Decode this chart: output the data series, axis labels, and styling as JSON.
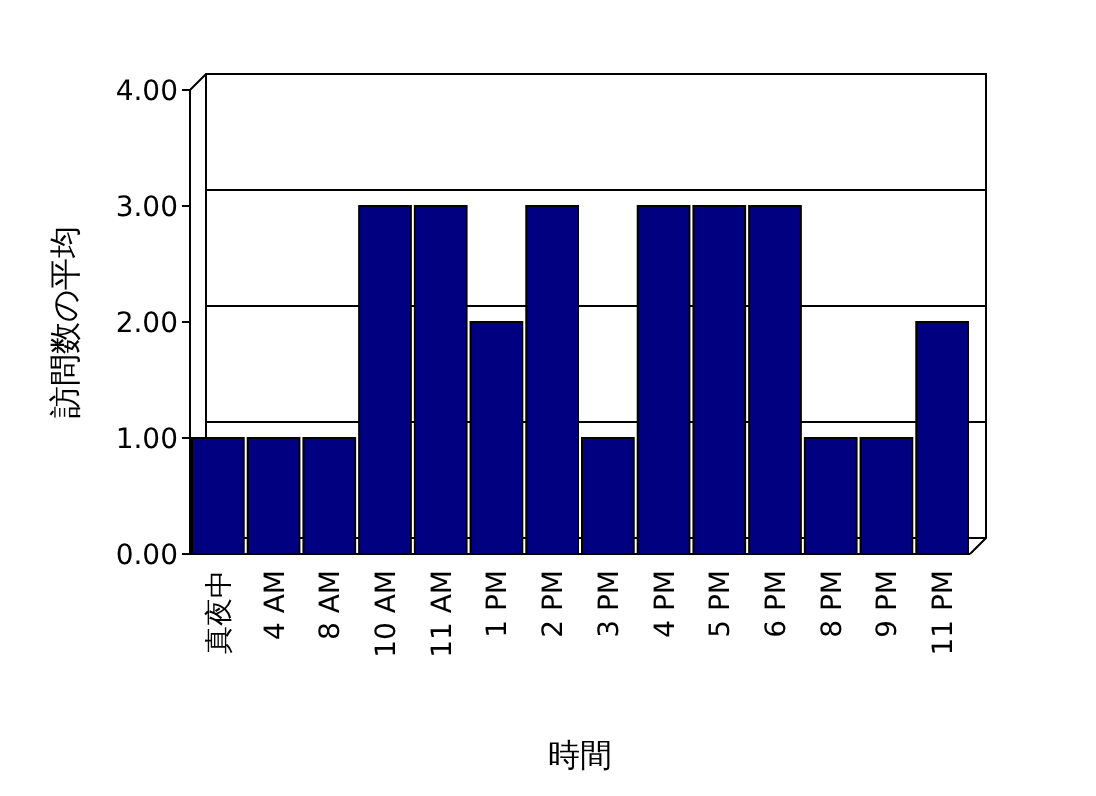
{
  "chart_data": {
    "type": "bar",
    "xlabel": "時間",
    "ylabel": "訪問数の平均",
    "categories": [
      "真夜中",
      "4 AM",
      "8 AM",
      "10 AM",
      "11 AM",
      "1 PM",
      "2 PM",
      "3 PM",
      "4 PM",
      "5 PM",
      "6 PM",
      "8 PM",
      "9 PM",
      "11 PM"
    ],
    "values": [
      1,
      1,
      1,
      3,
      3,
      2,
      3,
      1,
      3,
      3,
      3,
      1,
      1,
      2
    ],
    "color": "#000080",
    "ylim": [
      0,
      4
    ],
    "yticks": [
      {
        "value": 0,
        "label": "0.00"
      },
      {
        "value": 1,
        "label": "1.00"
      },
      {
        "value": 2,
        "label": "2.00"
      },
      {
        "value": 3,
        "label": "3.00"
      },
      {
        "value": 4,
        "label": "4.00"
      }
    ],
    "grid": "y"
  }
}
